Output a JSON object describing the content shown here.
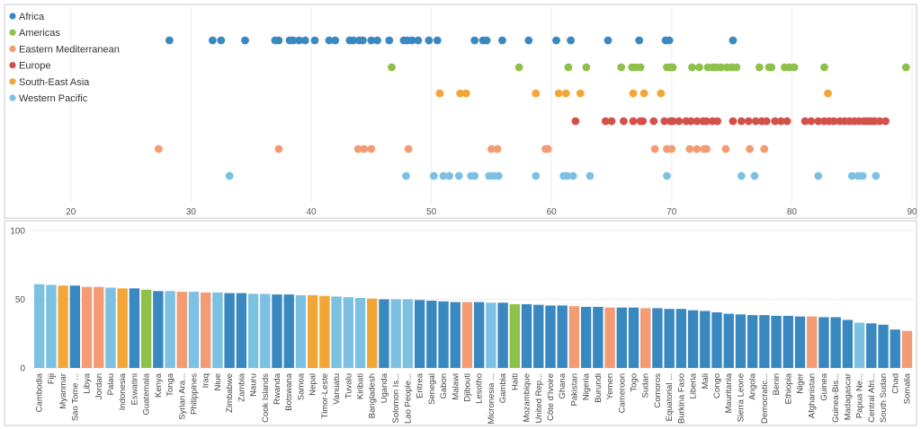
{
  "colors": {
    "Africa": "#3a88c0",
    "Americas": "#8ec04a",
    "Eastern Mediterranean": "#f39b72",
    "Europe": "#d4504a",
    "South-East Asia": "#f2a637",
    "Western Pacific": "#7cc0e2"
  },
  "chart_data": [
    {
      "type": "scatter",
      "legend": [
        "Africa",
        "Americas",
        "Eastern Mediterranean",
        "Europe",
        "South-East Asia",
        "Western Pacific"
      ],
      "legend_position": "top-left",
      "xlim": [
        15,
        90
      ],
      "xticks": [
        20,
        30,
        40,
        50,
        60,
        70,
        80,
        90
      ],
      "grid": true,
      "series": [
        {
          "name": "Africa",
          "x": [
            28.2,
            31.8,
            32.5,
            34.5,
            37.0,
            37.3,
            38.2,
            38.5,
            39.0,
            39.5,
            40.3,
            41.5,
            42.0,
            43.2,
            43.5,
            44.0,
            44.3,
            45.0,
            45.5,
            46.5,
            47.7,
            48.0,
            48.4,
            48.9,
            49.8,
            50.5,
            53.6,
            54.3,
            54.6,
            55.9,
            58.1,
            60.4,
            61.6,
            64.7,
            67.3,
            69.5,
            69.8,
            75.1
          ]
        },
        {
          "name": "Americas",
          "x": [
            46.7,
            57.3,
            61.4,
            62.9,
            65.8,
            66.7,
            67.0,
            67.4,
            69.6,
            69.9,
            70.1,
            71.7,
            72.3,
            73.0,
            73.4,
            73.7,
            74.1,
            74.6,
            75.0,
            75.4,
            77.3,
            78.1,
            78.3,
            79.4,
            79.8,
            80.2,
            82.7,
            89.5
          ]
        },
        {
          "name": "Eastern Mediterranean",
          "x": [
            27.3,
            37.3,
            43.9,
            44.4,
            45.0,
            48.1,
            55.0,
            55.5,
            59.5,
            59.7,
            68.6,
            69.6,
            70.0,
            71.5,
            72.1,
            72.7,
            72.9,
            74.5,
            76.5,
            77.7
          ]
        },
        {
          "name": "Europe",
          "x": [
            62.0,
            64.5,
            65.0,
            66.0,
            66.8,
            67.4,
            67.6,
            68.5,
            69.4,
            69.9,
            70.1,
            70.6,
            71.2,
            71.6,
            72.1,
            72.6,
            72.9,
            73.4,
            73.8,
            75.1,
            75.8,
            76.4,
            77.0,
            77.5,
            77.9,
            78.6,
            79.1,
            79.6,
            81.1,
            81.6,
            82.2,
            82.7,
            83.1,
            83.5,
            84.0,
            84.4,
            84.8,
            85.2,
            85.6,
            86.0,
            86.3,
            86.6,
            86.9,
            87.3,
            87.8
          ]
        },
        {
          "name": "South-East Asia",
          "x": [
            50.7,
            52.4,
            52.9,
            58.7,
            60.6,
            61.2,
            62.4,
            66.8,
            67.7,
            69.1,
            83.0
          ]
        },
        {
          "name": "Western Pacific",
          "x": [
            33.2,
            47.9,
            50.2,
            51.0,
            51.5,
            52.3,
            53.3,
            53.6,
            54.8,
            55.2,
            55.6,
            58.7,
            61.0,
            61.3,
            61.8,
            63.2,
            69.6,
            75.8,
            76.9,
            82.2,
            85.0,
            85.5,
            85.9,
            87.0
          ]
        }
      ]
    },
    {
      "type": "bar",
      "ylim": [
        0,
        100
      ],
      "yticks": [
        0,
        50,
        100
      ],
      "grid": true,
      "categories": [
        "Cambodia",
        "Fiji",
        "Myanmar",
        "Sao Tome ...",
        "Libya",
        "Jordan",
        "Palau",
        "Indonesia",
        "Eswatini",
        "Guatemala",
        "Kenya",
        "Tonga",
        "Syrian Ara...",
        "Philippines",
        "Iraq",
        "Niue",
        "Zimbabwe",
        "Zambia",
        "Nauru",
        "Cook Islands",
        "Rwanda",
        "Botswana",
        "Samoa",
        "Nepal",
        "Timor-Leste",
        "Vanuatu",
        "Tuvalu",
        "Kiribati",
        "Bangladesh",
        "Uganda",
        "Solomon Is...",
        "Lao People...",
        "Eritrea",
        "Senegal",
        "Gabon",
        "Malawi",
        "Djibouti",
        "Lesotho",
        "Micronesia ...",
        "Gambia",
        "Haiti",
        "Mozambique",
        "United Rep...",
        "Côte d'Ivoire",
        "Ghana",
        "Pakistan",
        "Nigeria",
        "Burundi",
        "Yemen",
        "Cameroon",
        "Togo",
        "Sudan",
        "Comoros",
        "Equatorial ...",
        "Burkina Faso",
        "Liberia",
        "Mali",
        "Congo",
        "Mauritania",
        "Sierra Leone",
        "Angola",
        "Democratic...",
        "Benin",
        "Ethiopia",
        "Niger",
        "Afghanistan",
        "Guinea",
        "Guinea-Bis...",
        "Madagascar",
        "Papua Ne...",
        "Central Afri...",
        "South Sudan",
        "Chad",
        "Somalia"
      ],
      "regions": [
        "Western Pacific",
        "Western Pacific",
        "South-East Asia",
        "Africa",
        "Eastern Mediterranean",
        "Eastern Mediterranean",
        "Western Pacific",
        "South-East Asia",
        "Africa",
        "Americas",
        "Africa",
        "Western Pacific",
        "Eastern Mediterranean",
        "Western Pacific",
        "Eastern Mediterranean",
        "Western Pacific",
        "Africa",
        "Africa",
        "Western Pacific",
        "Western Pacific",
        "Africa",
        "Africa",
        "Western Pacific",
        "South-East Asia",
        "South-East Asia",
        "Western Pacific",
        "Western Pacific",
        "Western Pacific",
        "South-East Asia",
        "Africa",
        "Western Pacific",
        "Western Pacific",
        "Africa",
        "Africa",
        "Africa",
        "Africa",
        "Eastern Mediterranean",
        "Africa",
        "Western Pacific",
        "Africa",
        "Americas",
        "Africa",
        "Africa",
        "Africa",
        "Africa",
        "Eastern Mediterranean",
        "Africa",
        "Africa",
        "Eastern Mediterranean",
        "Africa",
        "Africa",
        "Eastern Mediterranean",
        "Africa",
        "Africa",
        "Africa",
        "Africa",
        "Africa",
        "Africa",
        "Africa",
        "Africa",
        "Africa",
        "Africa",
        "Africa",
        "Africa",
        "Africa",
        "Eastern Mediterranean",
        "Africa",
        "Africa",
        "Africa",
        "Western Pacific",
        "Africa",
        "Africa",
        "Africa",
        "Eastern Mediterranean"
      ],
      "values": [
        61,
        60.5,
        60,
        60,
        59,
        59,
        58.5,
        58,
        58,
        57,
        56,
        56,
        55.5,
        55.5,
        55,
        55,
        54.5,
        54.5,
        54,
        54,
        53.5,
        53.5,
        53,
        53,
        52.5,
        52,
        51.5,
        51,
        50.5,
        50,
        50,
        50,
        49.5,
        49,
        48.5,
        48,
        48,
        48,
        47.5,
        47.5,
        46.5,
        46.5,
        46,
        45.5,
        45.5,
        45,
        44.5,
        44.5,
        44,
        44,
        44,
        43.5,
        43.5,
        43,
        43,
        42,
        41.5,
        40.5,
        39.5,
        39,
        38.5,
        38.5,
        38,
        38,
        37.5,
        37.5,
        37,
        37,
        35,
        33,
        32.5,
        31.5,
        28,
        27
      ]
    }
  ]
}
